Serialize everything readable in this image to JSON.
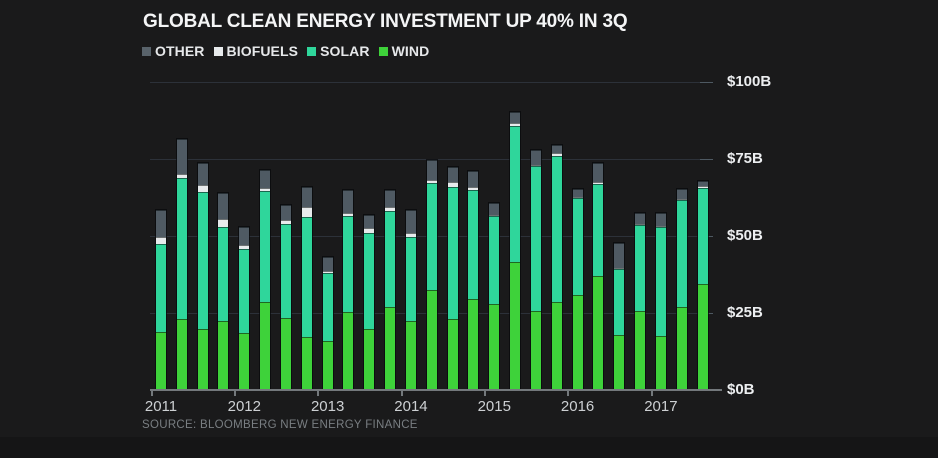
{
  "title": "GLOBAL CLEAN ENERGY INVESTMENT UP 40% IN 3Q",
  "source": "SOURCE: BLOOMBERG NEW ENERGY FINANCE",
  "legend": [
    {
      "label": "OTHER",
      "color": "#59636b"
    },
    {
      "label": "BIOFUELS",
      "color": "#e7eaec"
    },
    {
      "label": "SOLAR",
      "color": "#2fd69b"
    },
    {
      "label": "WIND",
      "color": "#3ed23a"
    }
  ],
  "colors": {
    "wind": "#3ed23a",
    "solar": "#2fd69b",
    "biofuels": "#e7eaec",
    "other": "#4f5a63",
    "grid": "#2c3139",
    "axis": "#73787c",
    "background": "#1a1a1b"
  },
  "y_axis": {
    "labels": [
      "$100B",
      "$75B",
      "$50B",
      "$25B",
      "$0B"
    ],
    "values": [
      100,
      75,
      50,
      25,
      0
    ]
  },
  "x_axis": {
    "year_labels": [
      "2011",
      "2012",
      "2013",
      "2014",
      "2015",
      "2016",
      "2017"
    ],
    "year_start_indices": [
      0,
      4,
      8,
      12,
      16,
      20,
      24
    ]
  },
  "chart_data": {
    "type": "bar",
    "stacked": true,
    "unit": "billion USD",
    "title": "GLOBAL CLEAN ENERGY INVESTMENT UP 40% IN 3Q",
    "ylim": [
      0,
      100
    ],
    "grid_values": [
      25,
      50,
      75,
      100
    ],
    "legend_position": "top-left",
    "categories": [
      "2011 Q1",
      "2011 Q2",
      "2011 Q3",
      "2011 Q4",
      "2012 Q1",
      "2012 Q2",
      "2012 Q3",
      "2012 Q4",
      "2013 Q1",
      "2013 Q2",
      "2013 Q3",
      "2013 Q4",
      "2014 Q1",
      "2014 Q2",
      "2014 Q3",
      "2014 Q4",
      "2015 Q1",
      "2015 Q2",
      "2015 Q3",
      "2015 Q4",
      "2016 Q1",
      "2016 Q2",
      "2016 Q3",
      "2016 Q4",
      "2017 Q1",
      "2017 Q2",
      "2017 Q3"
    ],
    "series": [
      {
        "name": "WIND",
        "values": [
          19.0,
          23.0,
          19.7,
          22.4,
          18.4,
          28.7,
          23.3,
          17.3,
          16.0,
          25.3,
          19.8,
          27.0,
          22.5,
          32.5,
          23.0,
          29.5,
          27.9,
          41.7,
          25.6,
          28.7,
          30.8,
          37.0,
          17.9,
          25.6,
          17.5,
          27.0,
          34.3
        ]
      },
      {
        "name": "SOLAR",
        "values": [
          28.5,
          46.0,
          44.7,
          30.6,
          27.3,
          35.9,
          30.5,
          39.0,
          21.9,
          31.3,
          31.1,
          31.1,
          27.3,
          34.6,
          43.0,
          35.5,
          28.5,
          44.0,
          47.0,
          47.3,
          31.6,
          30.0,
          21.4,
          28.0,
          35.5,
          34.6,
          31.2
        ]
      },
      {
        "name": "BIOFUELS",
        "values": [
          2.2,
          1.0,
          2.2,
          2.7,
          1.4,
          0.9,
          1.4,
          3.0,
          0.8,
          0.8,
          1.6,
          1.2,
          1.1,
          1.1,
          1.6,
          0.8,
          0.5,
          1.1,
          0.5,
          1.1,
          0.4,
          0.5,
          0.3,
          0.3,
          0.2,
          0.3,
          0.9
        ]
      },
      {
        "name": "OTHER",
        "values": [
          8.7,
          11.5,
          7.2,
          8.4,
          5.9,
          5.9,
          4.9,
          6.7,
          4.4,
          7.5,
          4.3,
          5.6,
          7.5,
          6.5,
          4.9,
          5.4,
          4.0,
          3.6,
          5.0,
          2.4,
          2.4,
          6.1,
          8.2,
          3.5,
          4.2,
          3.3,
          1.5
        ]
      }
    ]
  }
}
